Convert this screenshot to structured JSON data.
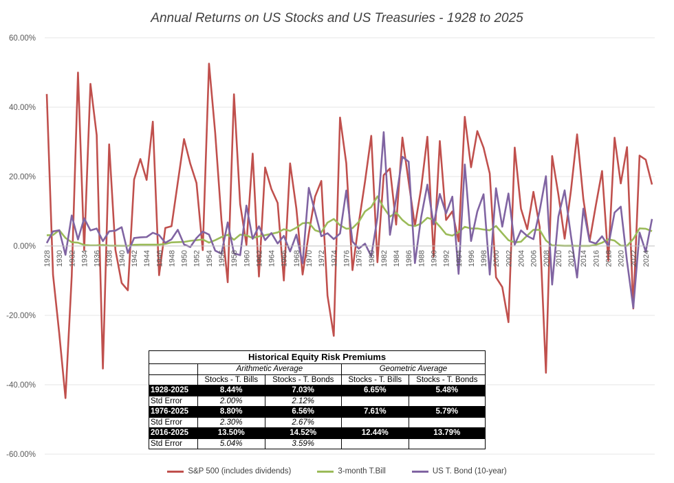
{
  "chart_data": {
    "type": "line",
    "title": "Annual Returns on US Stocks and US Treasuries - 1928 to 2025",
    "xlabel": "",
    "ylabel": "",
    "ylim": [
      -0.6,
      0.6
    ],
    "yticks": [
      {
        "value": 0.6,
        "label": "60.00%"
      },
      {
        "value": 0.4,
        "label": "40.00%"
      },
      {
        "value": 0.2,
        "label": "20.00%"
      },
      {
        "value": 0.0,
        "label": "0.00%"
      },
      {
        "value": -0.2,
        "label": "-20.00%"
      },
      {
        "value": -0.4,
        "label": "-40.00%"
      },
      {
        "value": -0.6,
        "label": "-60.00%"
      }
    ],
    "x_start": 1928,
    "xticks": [
      "1928",
      "1930",
      "1932",
      "1934",
      "1936",
      "1938",
      "1940",
      "1942",
      "1944",
      "1946",
      "1948",
      "1950",
      "1952",
      "1954",
      "1956",
      "1958",
      "1960",
      "1962",
      "1964",
      "1966",
      "1968",
      "1970",
      "1972",
      "1974",
      "1976",
      "1978",
      "1980",
      "1982",
      "1984",
      "1986",
      "1988",
      "1990",
      "1992",
      "1994",
      "1996",
      "1998",
      "2000",
      "2002",
      "2004",
      "2006",
      "2008",
      "2010",
      "2012",
      "2014",
      "2016",
      "2018",
      "2020",
      "2022",
      "2024"
    ],
    "series": [
      {
        "name": "S&P 500 (includes dividends)",
        "color": "#c0504d",
        "values": [
          0.4381,
          -0.083,
          -0.2512,
          -0.4384,
          -0.0864,
          0.4998,
          -0.0119,
          0.4674,
          0.3194,
          -0.3534,
          0.2928,
          -0.011,
          -0.1067,
          -0.1277,
          0.1917,
          0.2506,
          0.1903,
          0.3582,
          -0.0843,
          0.052,
          0.057,
          0.183,
          0.3081,
          0.2368,
          0.1815,
          -0.0121,
          0.5256,
          0.326,
          0.0744,
          -0.1046,
          0.4372,
          0.1206,
          0.0034,
          0.2664,
          -0.0881,
          0.2261,
          0.1642,
          0.124,
          -0.0997,
          0.238,
          0.1081,
          -0.0824,
          0.0356,
          0.1422,
          0.1876,
          -0.1431,
          -0.259,
          0.37,
          0.2383,
          -0.0698,
          0.0651,
          0.1852,
          0.3174,
          -0.047,
          0.2042,
          0.2234,
          0.0615,
          0.3124,
          0.1849,
          0.0581,
          0.1654,
          0.3148,
          -0.0306,
          0.3023,
          0.0749,
          0.0997,
          0.0133,
          0.372,
          0.2268,
          0.331,
          0.2834,
          0.2089,
          -0.0903,
          -0.1185,
          -0.2197,
          0.2836,
          0.1074,
          0.0483,
          0.1561,
          0.0548,
          -0.3655,
          0.2594,
          0.1482,
          0.021,
          0.1589,
          0.3215,
          0.1352,
          0.0138,
          0.1177,
          0.2161,
          -0.0423,
          0.3121,
          0.1802,
          0.2847,
          -0.1804,
          0.2606,
          0.2488,
          0.177
        ]
      },
      {
        "name": "3-month T.Bill",
        "color": "#9bbb59",
        "values": [
          0.0308,
          0.0316,
          0.0455,
          0.0231,
          0.0107,
          0.0096,
          0.003,
          0.0016,
          0.0017,
          0.0028,
          0.0007,
          0.0005,
          0.0004,
          0.0002,
          0.0033,
          0.0038,
          0.0038,
          0.0038,
          0.0038,
          0.0057,
          0.0102,
          0.011,
          0.0117,
          0.0148,
          0.0167,
          0.0189,
          0.0096,
          0.0166,
          0.0256,
          0.0323,
          0.0178,
          0.0326,
          0.0305,
          0.0227,
          0.0278,
          0.0311,
          0.0351,
          0.039,
          0.0484,
          0.0433,
          0.0526,
          0.0656,
          0.0669,
          0.0454,
          0.0395,
          0.0673,
          0.0778,
          0.0599,
          0.0497,
          0.0513,
          0.0693,
          0.0994,
          0.1122,
          0.143,
          0.1101,
          0.0845,
          0.0961,
          0.0749,
          0.0604,
          0.0572,
          0.0645,
          0.0811,
          0.0755,
          0.0561,
          0.0341,
          0.0298,
          0.0399,
          0.0552,
          0.0502,
          0.0505,
          0.0473,
          0.0451,
          0.0576,
          0.0367,
          0.0166,
          0.0103,
          0.0123,
          0.0301,
          0.0468,
          0.0464,
          0.0159,
          0.0014,
          0.0013,
          0.0003,
          0.0005,
          0.0002,
          0.0002,
          0.0002,
          0.0032,
          0.0093,
          0.0194,
          0.0155,
          0.0009,
          0.0004,
          0.0202,
          0.0507,
          0.0497,
          0.0425
        ]
      },
      {
        "name": "US T. Bond (10-year)",
        "color": "#8064a2",
        "values": [
          0.0084,
          0.042,
          0.0454,
          -0.0256,
          0.0879,
          0.0186,
          0.0796,
          0.0447,
          0.0502,
          0.0138,
          0.0421,
          0.0441,
          0.054,
          -0.0202,
          0.0229,
          0.0249,
          0.0258,
          0.038,
          0.0313,
          0.0092,
          0.0195,
          0.0466,
          0.0043,
          -0.003,
          0.0227,
          0.0414,
          0.0329,
          -0.0134,
          -0.0226,
          0.068,
          -0.021,
          -0.0265,
          0.1164,
          0.0206,
          0.0569,
          0.0168,
          0.0373,
          0.0072,
          0.0291,
          -0.0158,
          0.0327,
          -0.0501,
          0.1675,
          0.0979,
          0.0282,
          0.0366,
          0.0199,
          0.0361,
          0.1598,
          0.0129,
          -0.0078,
          0.0067,
          -0.0299,
          0.082,
          0.3281,
          0.032,
          0.1373,
          0.2571,
          0.2428,
          -0.0496,
          0.0822,
          0.1769,
          0.0624,
          0.15,
          0.0936,
          0.1421,
          -0.0804,
          0.2348,
          0.0143,
          0.0994,
          0.1492,
          -0.0825,
          0.1666,
          0.0557,
          0.1512,
          0.0038,
          0.0449,
          0.0287,
          0.0196,
          0.1021,
          0.201,
          -0.1112,
          0.0846,
          0.1604,
          0.0297,
          -0.091,
          0.1075,
          0.0128,
          0.0069,
          0.028,
          -0.0002,
          0.0964,
          0.1133,
          -0.0442,
          -0.1783,
          0.0388,
          -0.0164,
          0.0776
        ]
      }
    ],
    "table": {
      "title": "Historical Equity Risk Premiums",
      "group_headers": [
        "Arithmetic Average",
        "Geometric Average"
      ],
      "sub_headers": [
        "Stocks - T. Bills",
        "Stocks - T. Bonds",
        "Stocks - T. Bills",
        "Stocks - T. Bonds"
      ],
      "rows": [
        {
          "label": "1928-2025",
          "values": [
            "8.44%",
            "7.03%",
            "6.65%",
            "5.48%"
          ],
          "kind": "period"
        },
        {
          "label": "Std Error",
          "values": [
            "2.00%",
            "2.12%",
            "",
            ""
          ],
          "kind": "err"
        },
        {
          "label": "1976-2025",
          "values": [
            "8.80%",
            "6.56%",
            "7.61%",
            "5.79%"
          ],
          "kind": "period"
        },
        {
          "label": "Std Error",
          "values": [
            "2.30%",
            "2.67%",
            "",
            ""
          ],
          "kind": "err"
        },
        {
          "label": "2016-2025",
          "values": [
            "13.50%",
            "14.52%",
            "12.44%",
            "13.79%"
          ],
          "kind": "period"
        },
        {
          "label": "Std Error",
          "values": [
            "5.04%",
            "3.59%",
            "",
            ""
          ],
          "kind": "err"
        }
      ]
    }
  }
}
